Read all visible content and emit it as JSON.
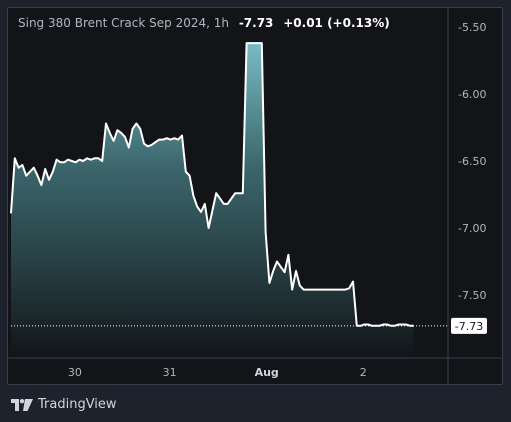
{
  "legend": {
    "symbol": "Sing 380 Brent Crack Sep 2024, 1h",
    "last_value": "-7.73",
    "change": "+0.01 (+0.13%)"
  },
  "branding": {
    "name": "TradingView"
  },
  "colors": {
    "line": "#ffffff",
    "area_top": "#7fc4cc",
    "area_bottom": "#121418",
    "price_tag_bg": "#ffffff",
    "price_tag_text": "#131722"
  },
  "chart_data": {
    "type": "area",
    "title": "",
    "xlabel": "",
    "ylabel": "",
    "ylim": [
      -8.0,
      -5.4
    ],
    "yticks": [
      -5.5,
      -6.0,
      -6.5,
      -7.0,
      -7.5
    ],
    "ytick_labels": [
      "-5.50",
      "-6.00",
      "-6.50",
      "-7.00",
      "-7.50"
    ],
    "xticks": [
      {
        "label": "30",
        "x": 14.3,
        "bold": false
      },
      {
        "label": "31",
        "x": 35.5,
        "bold": false
      },
      {
        "label": "Aug",
        "x": 57.2,
        "bold": true
      },
      {
        "label": "2",
        "x": 78.8,
        "bold": false
      }
    ],
    "xlim": [
      0,
      91.5
    ],
    "last_price_label": "-7.73",
    "last_price": -7.73,
    "grid": false,
    "series": [
      {
        "x": [
          0,
          0.85,
          1.7,
          2.55,
          3.4,
          4.25,
          5.1,
          5.95,
          6.8,
          7.65,
          8.5,
          9.35,
          10.2,
          11.05,
          11.9,
          12.75,
          13.6,
          14.45,
          15.3,
          16.15,
          17.0,
          17.85,
          18.7,
          19.55,
          20.4,
          21.25,
          22.1,
          22.95,
          23.8,
          24.65,
          25.5,
          26.35,
          27.2,
          28.05,
          28.9,
          29.75,
          30.6,
          31.45,
          32.3,
          33.15,
          34.0,
          34.85,
          35.7,
          36.55,
          37.4,
          38.25,
          39.1,
          39.95,
          40.8,
          41.65,
          42.5,
          43.35,
          44.2,
          45.05,
          45.9,
          46.75,
          47.6,
          48.45,
          49.3,
          50.15,
          51.0,
          51.85,
          52.7,
          53.55,
          54.4,
          55.25,
          56.1,
          56.95,
          57.8,
          58.65,
          59.5,
          60.35,
          61.2,
          62.05,
          62.9,
          63.75,
          64.6,
          65.45,
          66.3,
          67.15,
          68.0,
          68.85,
          69.7,
          70.55,
          71.4,
          72.25,
          73.1,
          73.95,
          74.8,
          75.65,
          76.5,
          77.35,
          78.2,
          79.05,
          79.9,
          80.75,
          81.6,
          82.45,
          83.3,
          84.15,
          85.0,
          85.85,
          86.7,
          87.55,
          88.4,
          89.25,
          90.1
        ],
        "y": [
          -6.89,
          -6.48,
          -6.55,
          -6.53,
          -6.61,
          -6.58,
          -6.55,
          -6.61,
          -6.68,
          -6.56,
          -6.64,
          -6.58,
          -6.49,
          -6.51,
          -6.51,
          -6.49,
          -6.5,
          -6.51,
          -6.49,
          -6.5,
          -6.48,
          -6.49,
          -6.48,
          -6.48,
          -6.5,
          -6.22,
          -6.29,
          -6.35,
          -6.27,
          -6.29,
          -6.32,
          -6.4,
          -6.26,
          -6.22,
          -6.26,
          -6.37,
          -6.39,
          -6.38,
          -6.36,
          -6.34,
          -6.34,
          -6.33,
          -6.34,
          -6.33,
          -6.34,
          -6.31,
          -6.58,
          -6.61,
          -6.76,
          -6.84,
          -6.88,
          -6.82,
          -7.0,
          -6.87,
          -6.74,
          -6.78,
          -6.82,
          -6.82,
          -6.78,
          -6.74,
          -6.74,
          -6.74,
          -5.62,
          -5.62,
          -5.62,
          -5.62,
          -5.62,
          -7.03,
          -7.41,
          -7.32,
          -7.25,
          -7.29,
          -7.33,
          -7.2,
          -7.46,
          -7.32,
          -7.43,
          -7.46,
          -7.46,
          -7.46,
          -7.46,
          -7.46,
          -7.46,
          -7.46,
          -7.46,
          -7.46,
          -7.46,
          -7.46,
          -7.46,
          -7.45,
          -7.4,
          -7.73,
          -7.73,
          -7.72,
          -7.72,
          -7.73,
          -7.73,
          -7.73,
          -7.72,
          -7.72,
          -7.73,
          -7.73,
          -7.72,
          -7.72,
          -7.72,
          -7.73,
          -7.73
        ]
      }
    ]
  }
}
